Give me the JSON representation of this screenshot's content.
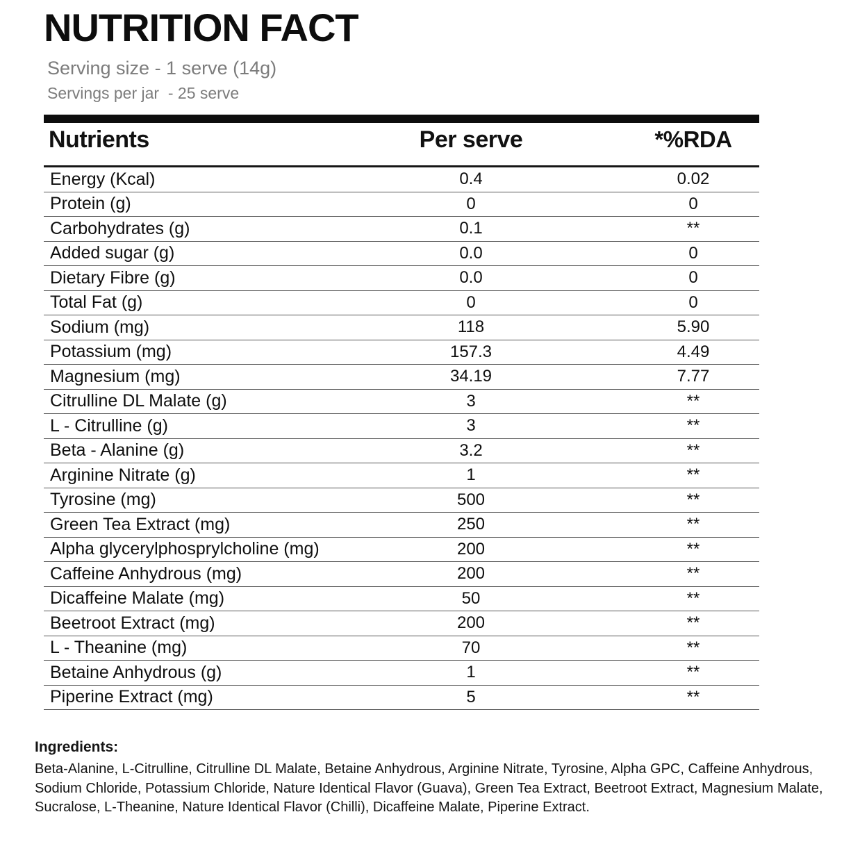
{
  "page": {
    "title": "NUTRITION FACT",
    "serving_size": "Serving size - 1 serve (14g)",
    "servings_per_jar": "Servings per jar  - 25 serve"
  },
  "table": {
    "columns": [
      "Nutrients",
      "Per serve",
      "*%RDA"
    ],
    "rows": [
      {
        "nutrient": "Energy (Kcal)",
        "per_serve": "0.4",
        "rda": "0.02"
      },
      {
        "nutrient": "Protein (g)",
        "per_serve": "0",
        "rda": "0"
      },
      {
        "nutrient": "Carbohydrates (g)",
        "per_serve": "0.1",
        "rda": "**"
      },
      {
        "nutrient": "Added sugar (g)",
        "per_serve": "0.0",
        "rda": "0"
      },
      {
        "nutrient": "Dietary Fibre (g)",
        "per_serve": "0.0",
        "rda": "0"
      },
      {
        "nutrient": "Total Fat (g)",
        "per_serve": "0",
        "rda": "0"
      },
      {
        "nutrient": "Sodium (mg)",
        "per_serve": "118",
        "rda": "5.90"
      },
      {
        "nutrient": "Potassium (mg)",
        "per_serve": "157.3",
        "rda": "4.49"
      },
      {
        "nutrient": "Magnesium (mg)",
        "per_serve": "34.19",
        "rda": "7.77"
      },
      {
        "nutrient": "Citrulline DL Malate (g)",
        "per_serve": "3",
        "rda": "**"
      },
      {
        "nutrient": "L - Citrulline (g)",
        "per_serve": "3",
        "rda": "**"
      },
      {
        "nutrient": "Beta - Alanine (g)",
        "per_serve": "3.2",
        "rda": "**"
      },
      {
        "nutrient": "Arginine Nitrate (g)",
        "per_serve": "1",
        "rda": "**"
      },
      {
        "nutrient": "Tyrosine (mg)",
        "per_serve": "500",
        "rda": "**"
      },
      {
        "nutrient": "Green Tea Extract (mg)",
        "per_serve": "250",
        "rda": "**"
      },
      {
        "nutrient": "Alpha glycerylphosprylcholine (mg)",
        "per_serve": "200",
        "rda": "**"
      },
      {
        "nutrient": "Caffeine Anhydrous (mg)",
        "per_serve": "200",
        "rda": "**"
      },
      {
        "nutrient": "Dicaffeine Malate (mg)",
        "per_serve": "50",
        "rda": "**"
      },
      {
        "nutrient": "Beetroot Extract (mg)",
        "per_serve": "200",
        "rda": "**"
      },
      {
        "nutrient": "L - Theanine (mg)",
        "per_serve": "70",
        "rda": "**"
      },
      {
        "nutrient": "Betaine Anhydrous (g)",
        "per_serve": "1",
        "rda": "**"
      },
      {
        "nutrient": "Piperine Extract (mg)",
        "per_serve": "5",
        "rda": "**"
      }
    ]
  },
  "ingredients": {
    "label": "Ingredients:",
    "text": "Beta-Alanine, L-Citrulline, Citrulline DL Malate, Betaine Anhydrous, Arginine Nitrate, Tyrosine, Alpha GPC, Caffeine Anhydrous, Sodium Chloride, Potassium Chloride, Nature Identical Flavor (Guava), Green Tea Extract, Beetroot Extract, Magnesium Malate, Sucralose, L-Theanine, Nature Identical Flavor (Chilli), Dicaffeine Malate, Piperine Extract."
  },
  "colors": {
    "text_primary": "#0d0d0d",
    "text_muted": "#7c7c7c",
    "header_bar": "#0d0d0d",
    "row_divider": "#545454"
  }
}
